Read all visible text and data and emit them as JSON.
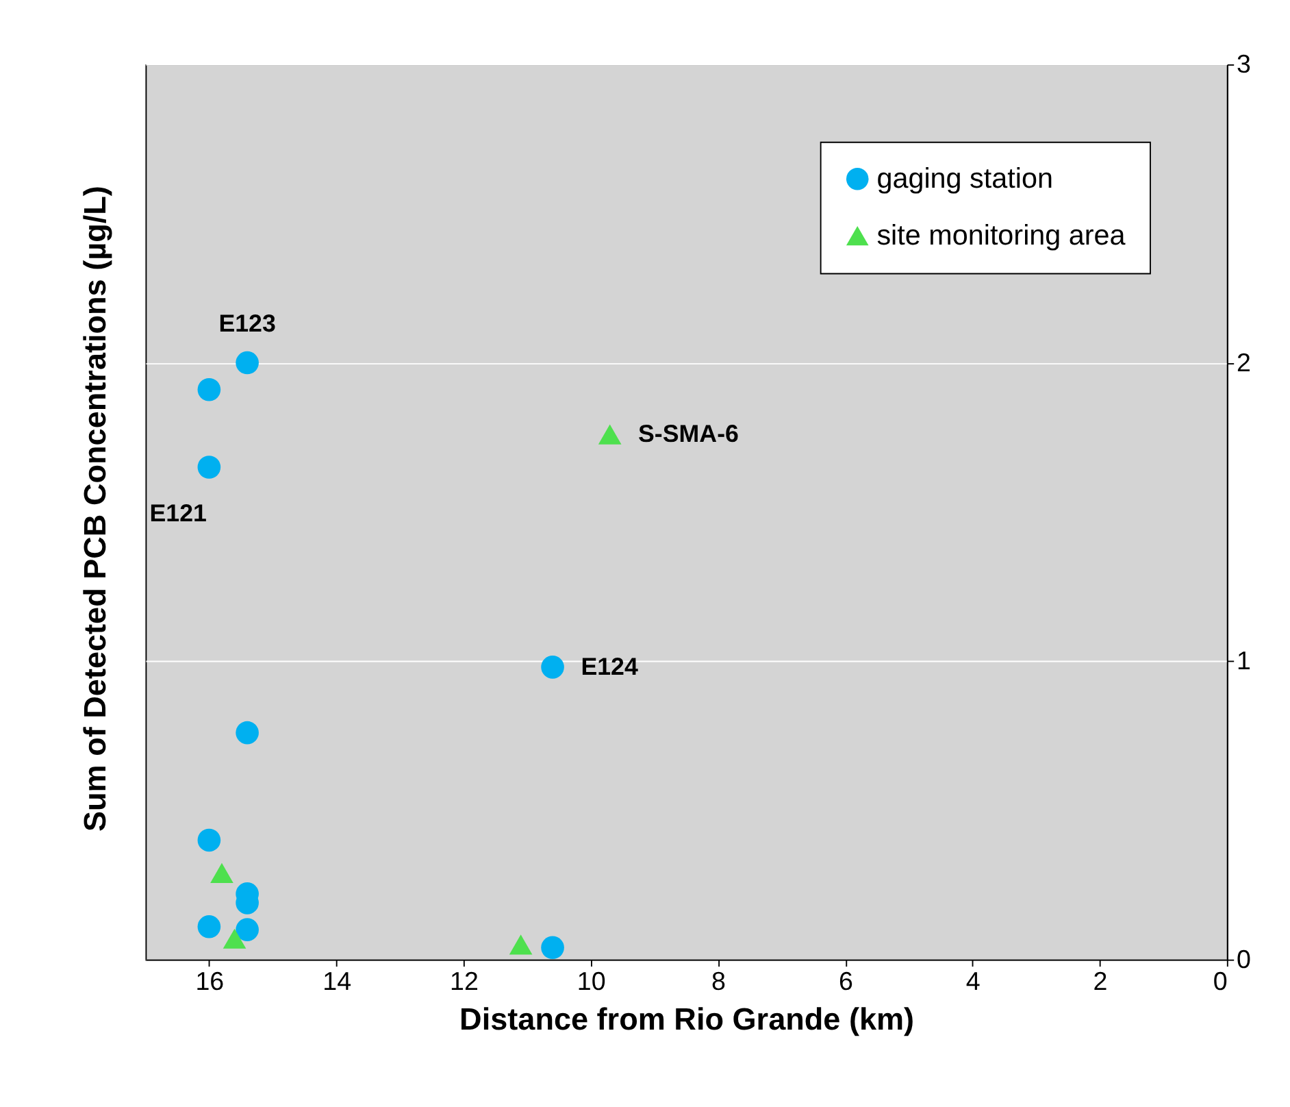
{
  "chart_data": {
    "type": "scatter",
    "xlabel": "Distance from Rio Grande (km)",
    "ylabel": "Sum of Detected PCB Concentrations (µg/L)",
    "xlim": [
      17,
      0
    ],
    "xticks": [
      16,
      14,
      12,
      10,
      8,
      6,
      4,
      2,
      0
    ],
    "ylim": [
      0,
      3
    ],
    "yticks": [
      0,
      1,
      2,
      3
    ],
    "grid": "y",
    "legend": "top right",
    "series": [
      {
        "name": "gaging station",
        "color": "#00b0f0",
        "marker": "circle",
        "x": [
          16,
          15.4,
          16,
          10.6,
          15.4,
          16,
          15.4,
          15.4,
          16,
          15.4,
          10.6
        ],
        "values": [
          1.91,
          2.0,
          1.65,
          0.98,
          0.76,
          0.4,
          0.22,
          0.19,
          0.11,
          0.1,
          0.04
        ]
      },
      {
        "name": "site monitoring area",
        "color": "#4ee04e",
        "marker": "triangle",
        "x": [
          9.7,
          15.8,
          15.6,
          11.1
        ],
        "values": [
          1.76,
          0.29,
          0.07,
          0.05
        ]
      }
    ],
    "annotations": [
      {
        "text": "E123",
        "x": 15.4,
        "y": 2.0
      },
      {
        "text": "E121",
        "x": 16,
        "y": 1.65
      },
      {
        "text": "S-SMA-6",
        "x": 9.7,
        "y": 1.76
      },
      {
        "text": "E124",
        "x": 10.6,
        "y": 0.98
      }
    ]
  }
}
